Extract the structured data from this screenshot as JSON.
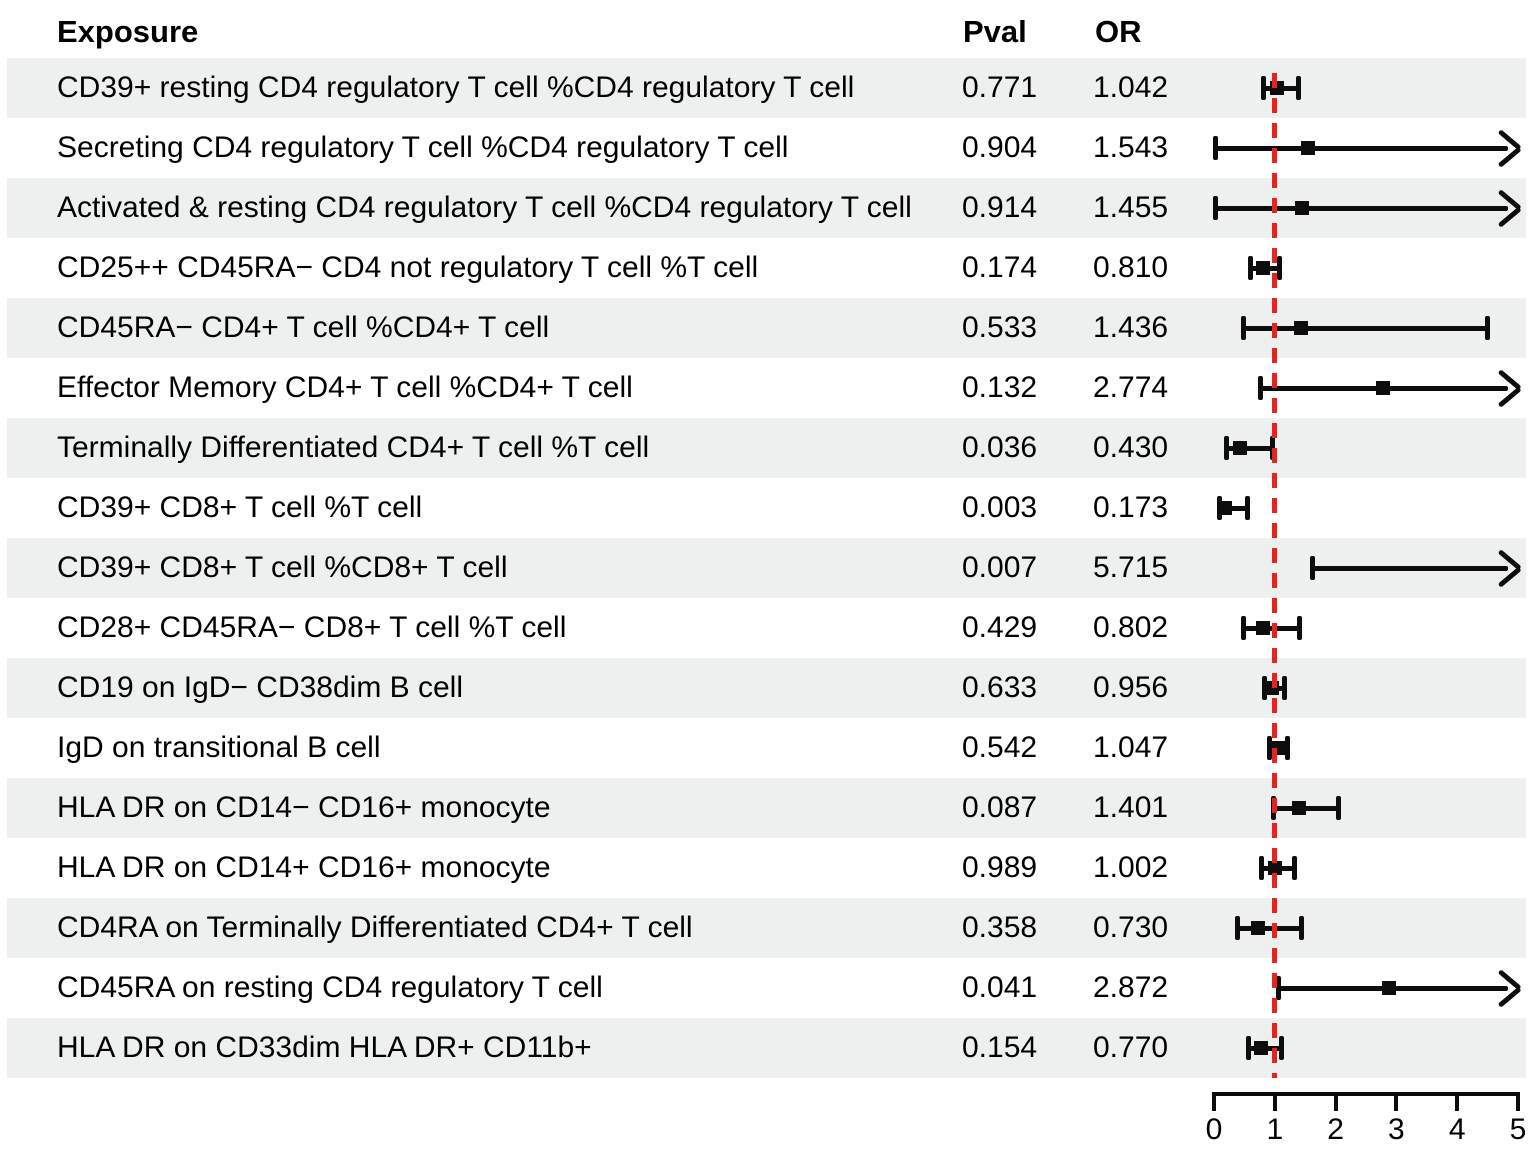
{
  "colors": {
    "stripe": "#edf0ee",
    "bar": "#0d0d0d",
    "reference_line": "#e8231e",
    "text": "#000000"
  },
  "chart_data": {
    "type": "forest",
    "columns": {
      "exposure": "Exposure",
      "pval": "Pval",
      "or": "OR"
    },
    "axis": {
      "min": 0,
      "max": 5,
      "ticks": [
        0,
        1,
        2,
        3,
        4,
        5
      ],
      "reference_value": 1
    },
    "legend": "none",
    "rows": [
      {
        "exposure": "CD39+ resting CD4 regulatory T cell %CD4 regulatory T cell",
        "pval": "0.771",
        "or": "1.042",
        "or_value": 1.042,
        "ci_low": 0.8,
        "ci_high": 1.39,
        "arrow": false
      },
      {
        "exposure": "Secreting CD4 regulatory T cell %CD4 regulatory T cell",
        "pval": "0.904",
        "or": "1.543",
        "or_value": 1.543,
        "ci_low": 0.02,
        "ci_high": 5,
        "arrow": true
      },
      {
        "exposure": "Activated & resting CD4 regulatory T cell %CD4 regulatory T cell",
        "pval": "0.914",
        "or": "1.455",
        "or_value": 1.455,
        "ci_low": 0.02,
        "ci_high": 5,
        "arrow": true
      },
      {
        "exposure": "CD25++ CD45RA− CD4 not regulatory T cell %T cell",
        "pval": "0.174",
        "or": "0.810",
        "or_value": 0.81,
        "ci_low": 0.6,
        "ci_high": 1.09,
        "arrow": false
      },
      {
        "exposure": "CD45RA− CD4+ T cell %CD4+ T cell",
        "pval": "0.533",
        "or": "1.436",
        "or_value": 1.436,
        "ci_low": 0.47,
        "ci_high": 4.5,
        "arrow": false
      },
      {
        "exposure": "Effector Memory CD4+ T cell %CD4+ T cell",
        "pval": "0.132",
        "or": "2.774",
        "or_value": 2.774,
        "ci_low": 0.75,
        "ci_high": 5,
        "arrow": true
      },
      {
        "exposure": "Terminally Differentiated CD4+ T cell %T cell",
        "pval": "0.036",
        "or": "0.430",
        "or_value": 0.43,
        "ci_low": 0.2,
        "ci_high": 0.97,
        "arrow": false
      },
      {
        "exposure": "CD39+ CD8+ T cell %T cell",
        "pval": "0.003",
        "or": "0.173",
        "or_value": 0.173,
        "ci_low": 0.08,
        "ci_high": 0.56,
        "arrow": false
      },
      {
        "exposure": "CD39+ CD8+ T cell %CD8+ T cell",
        "pval": "0.007",
        "or": "5.715",
        "or_value": 5.715,
        "ci_low": 1.62,
        "ci_high": 5,
        "arrow": true
      },
      {
        "exposure": "CD28+ CD45RA− CD8+ T cell %T cell",
        "pval": "0.429",
        "or": "0.802",
        "or_value": 0.802,
        "ci_low": 0.48,
        "ci_high": 1.41,
        "arrow": false
      },
      {
        "exposure": "CD19 on IgD− CD38dim B cell",
        "pval": "0.633",
        "or": "0.956",
        "or_value": 0.956,
        "ci_low": 0.82,
        "ci_high": 1.16,
        "arrow": false
      },
      {
        "exposure": "IgD on transitional B cell",
        "pval": "0.542",
        "or": "1.047",
        "or_value": 1.047,
        "ci_low": 0.91,
        "ci_high": 1.21,
        "arrow": false
      },
      {
        "exposure": "HLA DR on CD14− CD16+ monocyte",
        "pval": "0.087",
        "or": "1.401",
        "or_value": 1.401,
        "ci_low": 0.97,
        "ci_high": 2.06,
        "arrow": false
      },
      {
        "exposure": "HLA DR on CD14+ CD16+ monocyte",
        "pval": "0.989",
        "or": "1.002",
        "or_value": 1.002,
        "ci_low": 0.77,
        "ci_high": 1.33,
        "arrow": false
      },
      {
        "exposure": "CD4RA on Terminally Differentiated CD4+ T cell",
        "pval": "0.358",
        "or": "0.730",
        "or_value": 0.73,
        "ci_low": 0.38,
        "ci_high": 1.44,
        "arrow": false
      },
      {
        "exposure": "CD45RA on resting CD4 regulatory T cell",
        "pval": "0.041",
        "or": "2.872",
        "or_value": 2.872,
        "ci_low": 1.06,
        "ci_high": 5,
        "arrow": true
      },
      {
        "exposure": "HLA DR on CD33dim HLA DR+ CD11b+",
        "pval": "0.154",
        "or": "0.770",
        "or_value": 0.77,
        "ci_low": 0.56,
        "ci_high": 1.12,
        "arrow": false
      }
    ]
  }
}
